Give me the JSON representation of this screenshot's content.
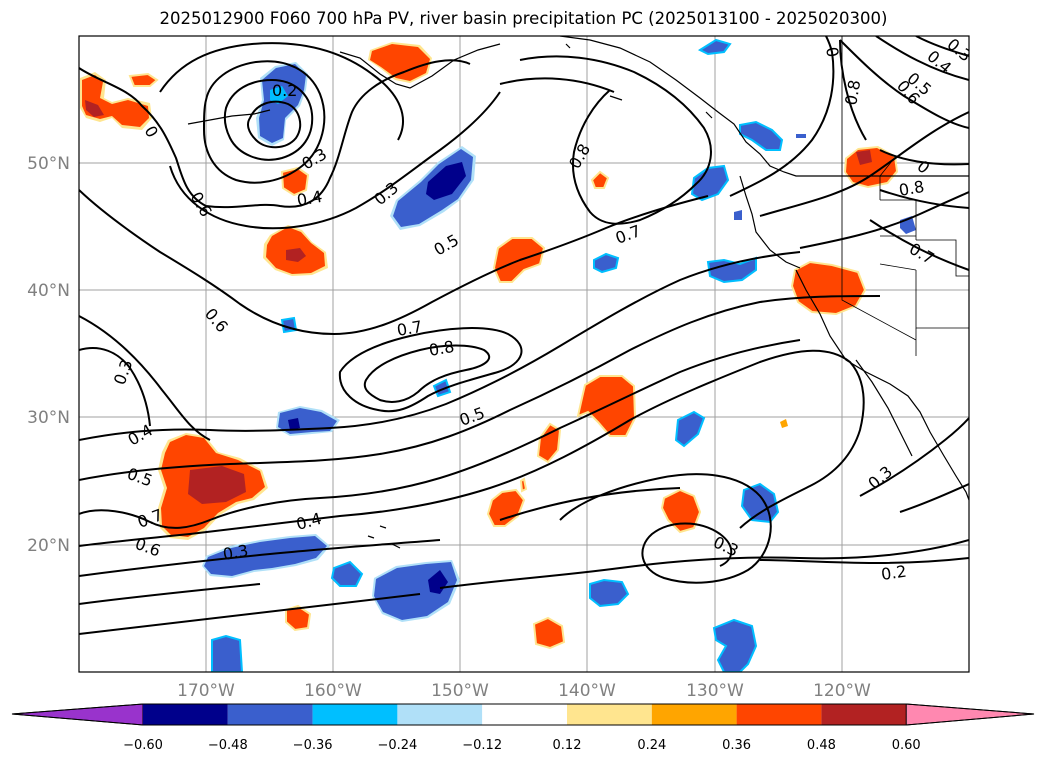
{
  "title": "2025012900 F060 700 hPa PV, river basin precipitation PC (2025013100 - 2025020300)",
  "lat_labels": [
    "50°N",
    "40°N",
    "30°N",
    "20°N"
  ],
  "lon_labels": [
    "170°W",
    "160°W",
    "150°W",
    "140°W",
    "130°W",
    "120°W"
  ],
  "colorbar": {
    "tick_labels": [
      "−0.60",
      "−0.48",
      "−0.36",
      "−0.24",
      "−0.12",
      "0.12",
      "0.24",
      "0.36",
      "0.48",
      "0.60"
    ],
    "colors": [
      "#9933cc",
      "#00008b",
      "#3a5fcd",
      "#00bfff",
      "#b0e0f8",
      "#ffffff",
      "#ffe58f",
      "#ffa500",
      "#ff4500",
      "#b22222",
      "#ff88b0"
    ]
  },
  "contour_labels": [
    {
      "text": "0.2"
    },
    {
      "text": "0.3"
    },
    {
      "text": "0.4"
    },
    {
      "text": "0.6"
    },
    {
      "text": "0.3"
    },
    {
      "text": "0.5"
    },
    {
      "text": "0.8"
    },
    {
      "text": "0.7"
    },
    {
      "text": "0.6"
    },
    {
      "text": "0.7"
    },
    {
      "text": "0.8"
    },
    {
      "text": "0.3"
    },
    {
      "text": "0.4"
    },
    {
      "text": "0.5"
    },
    {
      "text": "0.7"
    },
    {
      "text": "0.6"
    },
    {
      "text": "0.4"
    },
    {
      "text": "0.3"
    },
    {
      "text": "0.5"
    },
    {
      "text": "0.3"
    },
    {
      "text": "0.2"
    },
    {
      "text": "0.3"
    },
    {
      "text": "0.8"
    },
    {
      "text": "0.6"
    },
    {
      "text": "0.5"
    },
    {
      "text": "0.4"
    },
    {
      "text": "0.3"
    },
    {
      "text": "0.7"
    },
    {
      "text": "0.8"
    },
    {
      "text": "0"
    },
    {
      "text": "0"
    },
    {
      "text": "0"
    }
  ]
}
